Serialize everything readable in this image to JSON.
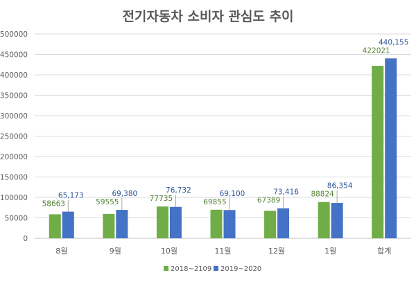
{
  "chart_data": {
    "type": "bar",
    "title": "전기자동차 소비자 관심도 추이",
    "categories": [
      "8월",
      "9월",
      "10월",
      "11월",
      "12월",
      "1월",
      "합계"
    ],
    "series": [
      {
        "name": "2018~2109",
        "color": "#70AD47",
        "values": [
          58663,
          59555,
          77735,
          69855,
          67389,
          88824,
          422021
        ],
        "labels": [
          "58663",
          "59555",
          "77735",
          "69855",
          "67389",
          "88824",
          "422021"
        ]
      },
      {
        "name": "2019~2020",
        "color": "#4472C4",
        "values": [
          65173,
          69380,
          76732,
          69100,
          73416,
          86354,
          440155
        ],
        "labels": [
          "65,173",
          "69,380",
          "76,732",
          "69,100",
          "73,416",
          "86,354",
          "440,155"
        ]
      }
    ],
    "ylim": [
      0,
      500000
    ],
    "yticks": [
      "0",
      "50000",
      "100000",
      "150000",
      "200000",
      "250000",
      "300000",
      "350000",
      "400000",
      "450000",
      "500000"
    ],
    "grid": true,
    "legend": "bottom",
    "xlabel": "",
    "ylabel": ""
  }
}
